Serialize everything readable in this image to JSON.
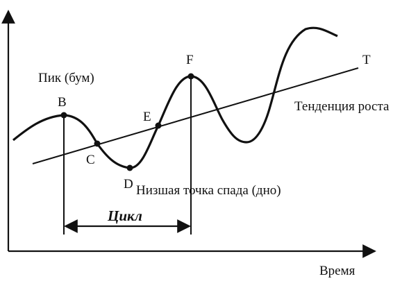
{
  "diagram": {
    "points": {
      "B": "B",
      "C": "C",
      "D": "D",
      "E": "E",
      "F": "F",
      "T": "T"
    },
    "labels": {
      "peak": "Пик (бум)",
      "trend": "Тенденция роста",
      "trough": "Низшая точка спада (дно)",
      "cycle": "Цикл",
      "time_axis": "Время"
    }
  }
}
